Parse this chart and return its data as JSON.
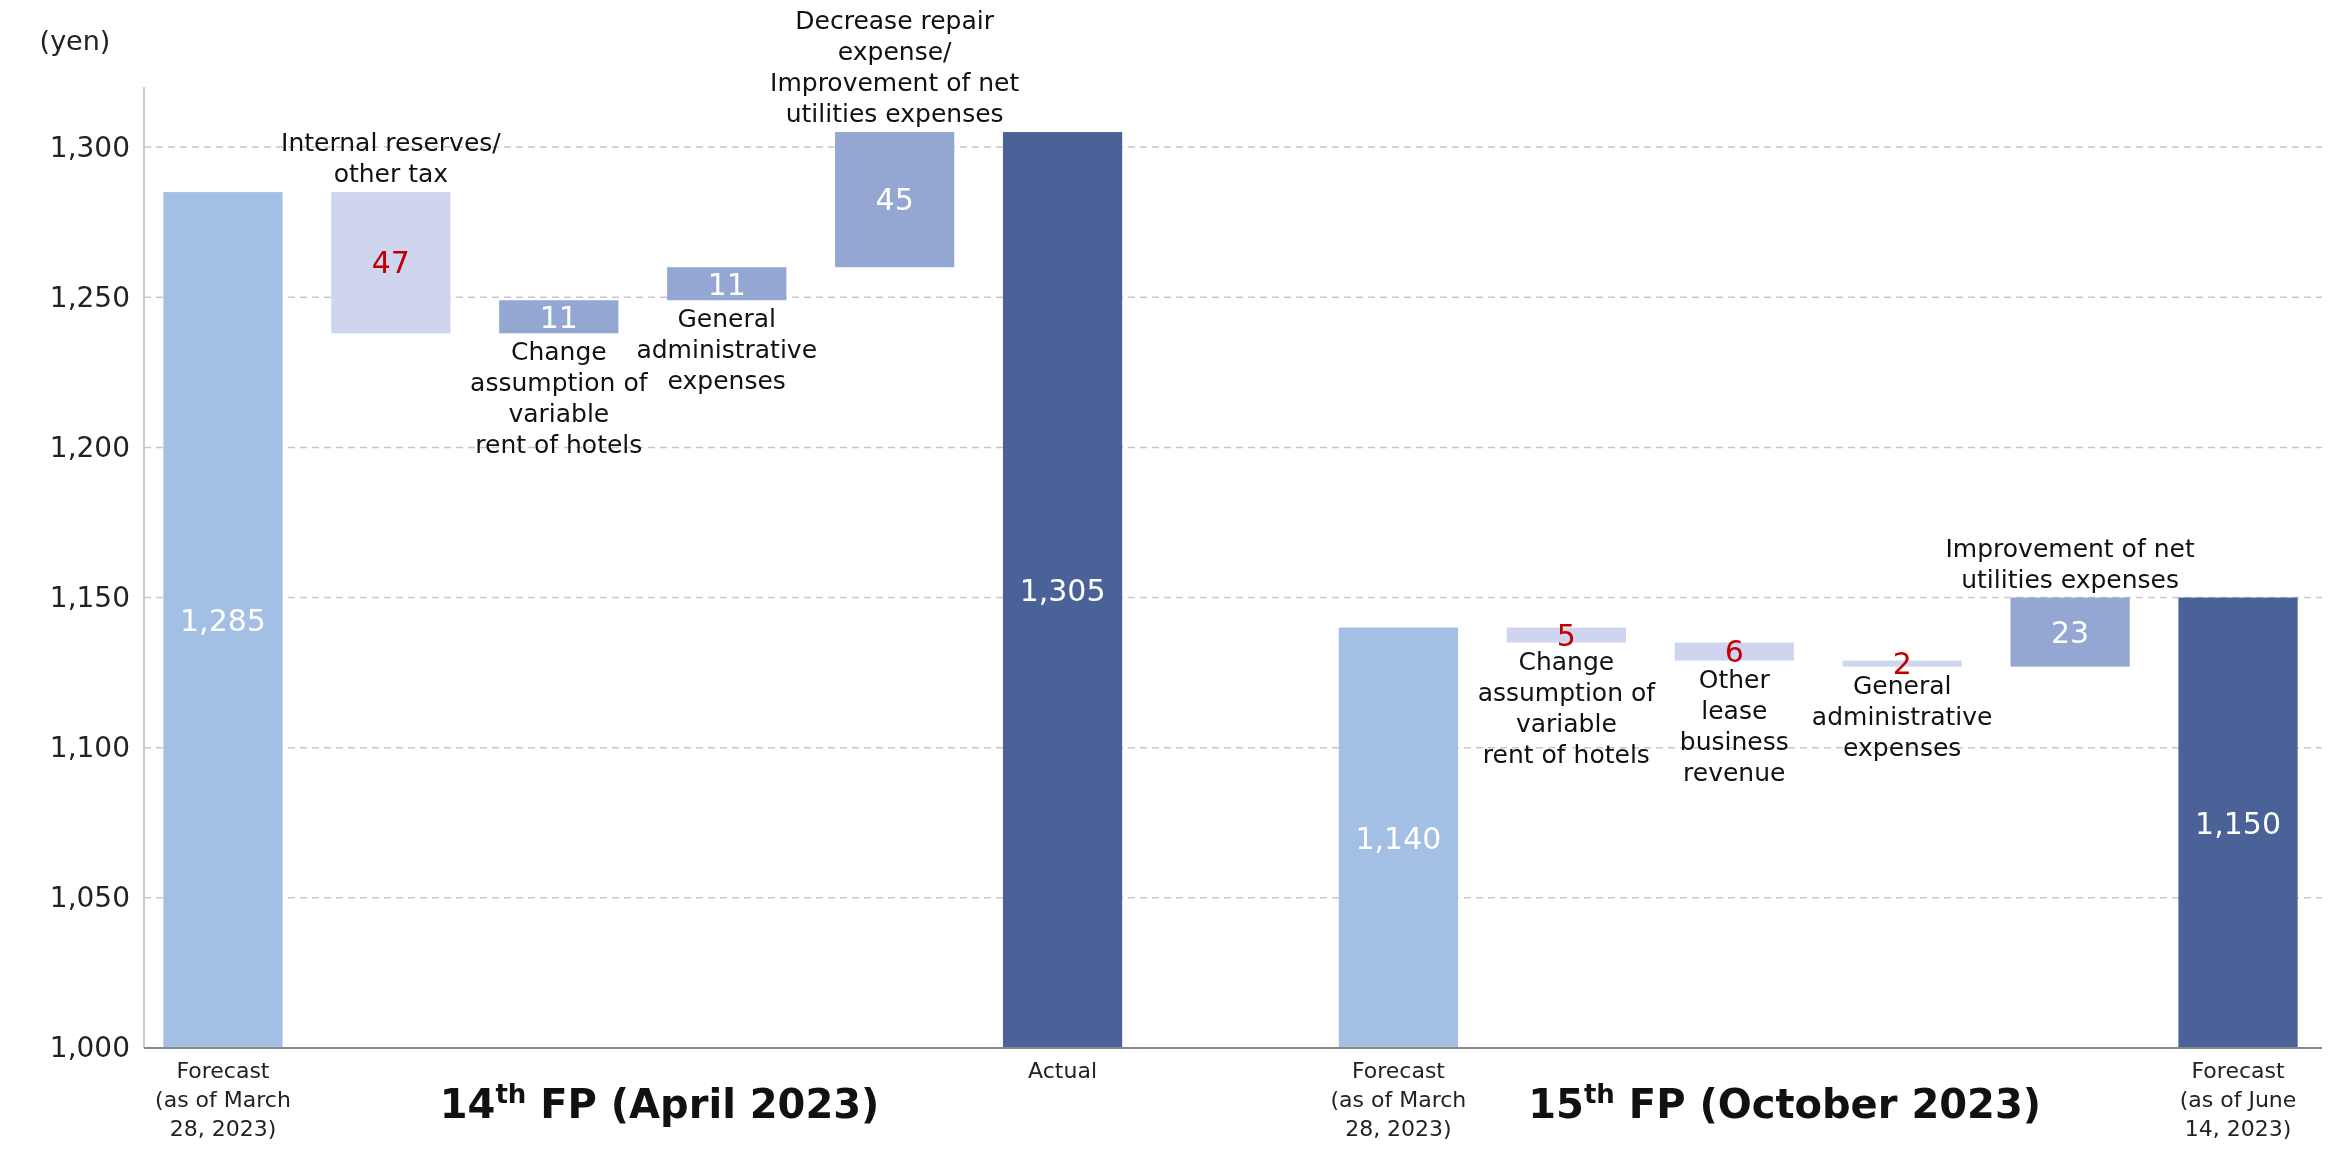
{
  "chart_data": {
    "type": "bar",
    "ylabel": "(yen)",
    "categories": [
      "Forecast (as of March 28, 2023)",
      null,
      null,
      null,
      null,
      "Actual",
      null,
      "Forecast (as of March 28, 2023)",
      null,
      null,
      null,
      null,
      "Forecast (as of June 14, 2023)"
    ],
    "values": [
      1285,
      -47,
      11,
      11,
      45,
      1305,
      null,
      1140,
      -5,
      -6,
      -2,
      23,
      1150
    ],
    "base": [
      null,
      1285,
      1238,
      1249,
      1260,
      null,
      null,
      null,
      1140,
      1135,
      1129,
      1127,
      null
    ],
    "colors": [
      "#a3bfe3",
      "#cfd5ef",
      "#94a6d2",
      "#94a6d2",
      "#94a6d2",
      "#4a6298",
      null,
      "#a3bfe3",
      "#cfd5ef",
      "#cfd5ef",
      "#cfd5ef",
      "#94a6d2",
      "#4a6298"
    ],
    "value_labels": [
      "1,285",
      "47",
      "11",
      "11",
      "45",
      "1,305",
      null,
      "1,140",
      "5",
      "6",
      "2",
      "23",
      "1,150"
    ],
    "ylim": [
      1000,
      1320
    ],
    "yticks": [
      {
        "value": 1000,
        "label": "1,000"
      },
      {
        "value": 1050,
        "label": "1,050"
      },
      {
        "value": 1100,
        "label": "1,100"
      },
      {
        "value": 1150,
        "label": "1,150"
      },
      {
        "value": 1200,
        "label": "1,200"
      },
      {
        "value": 1250,
        "label": "1,250"
      },
      {
        "value": 1300,
        "label": "1,300"
      }
    ],
    "grid": "y",
    "annotations": [
      "Internal reserves/ other tax",
      "Change assumption of variable rent of hotels",
      "General administrative expenses",
      "Decrease repair expense/ Improvement of net utilities expenses",
      "Change assumption of variable rent of hotels",
      "Other lease business revenue",
      "General administrative expenses",
      "Improvement of net utilities expenses",
      "14$^{th}$ FP (April 2023)",
      "15$^{th}$ FP (October 2023)"
    ]
  }
}
